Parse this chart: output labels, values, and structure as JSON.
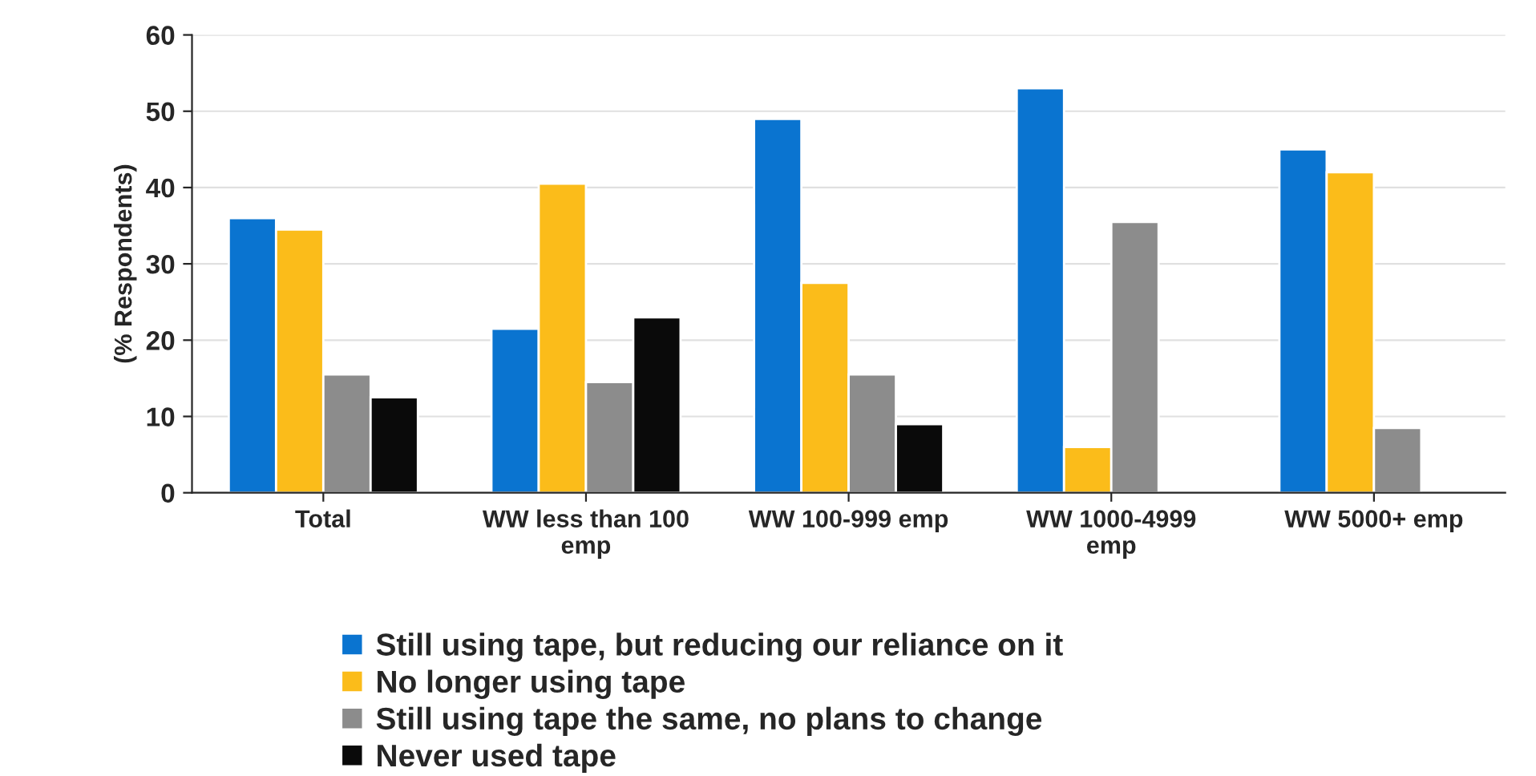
{
  "chart_data": {
    "type": "bar",
    "ylabel": "(% Respondents)",
    "categories": [
      "Total",
      "WW less than 100\nemp",
      "WW 100-999 emp",
      "WW 1000-4999\nemp",
      "WW 5000+ emp"
    ],
    "series": [
      {
        "name": "Still using tape, but reducing our reliance on it",
        "color": "#0a74d0",
        "values": [
          36,
          21.5,
          49,
          53,
          45
        ]
      },
      {
        "name": "No longer using tape",
        "color": "#fbbc1a",
        "values": [
          34.5,
          40.5,
          27.5,
          6,
          42
        ]
      },
      {
        "name": "Still using tape the same, no plans to change",
        "color": "#8c8c8c",
        "values": [
          15.5,
          14.5,
          15.5,
          35.5,
          8.5
        ]
      },
      {
        "name": "Never used tape",
        "color": "#0a0a0a",
        "values": [
          12.5,
          23,
          9,
          null,
          null
        ]
      }
    ],
    "ylim": [
      0,
      60
    ],
    "yticks": [
      0,
      10,
      20,
      30,
      40,
      50,
      60
    ],
    "grid": "y",
    "legend": "bottom"
  }
}
